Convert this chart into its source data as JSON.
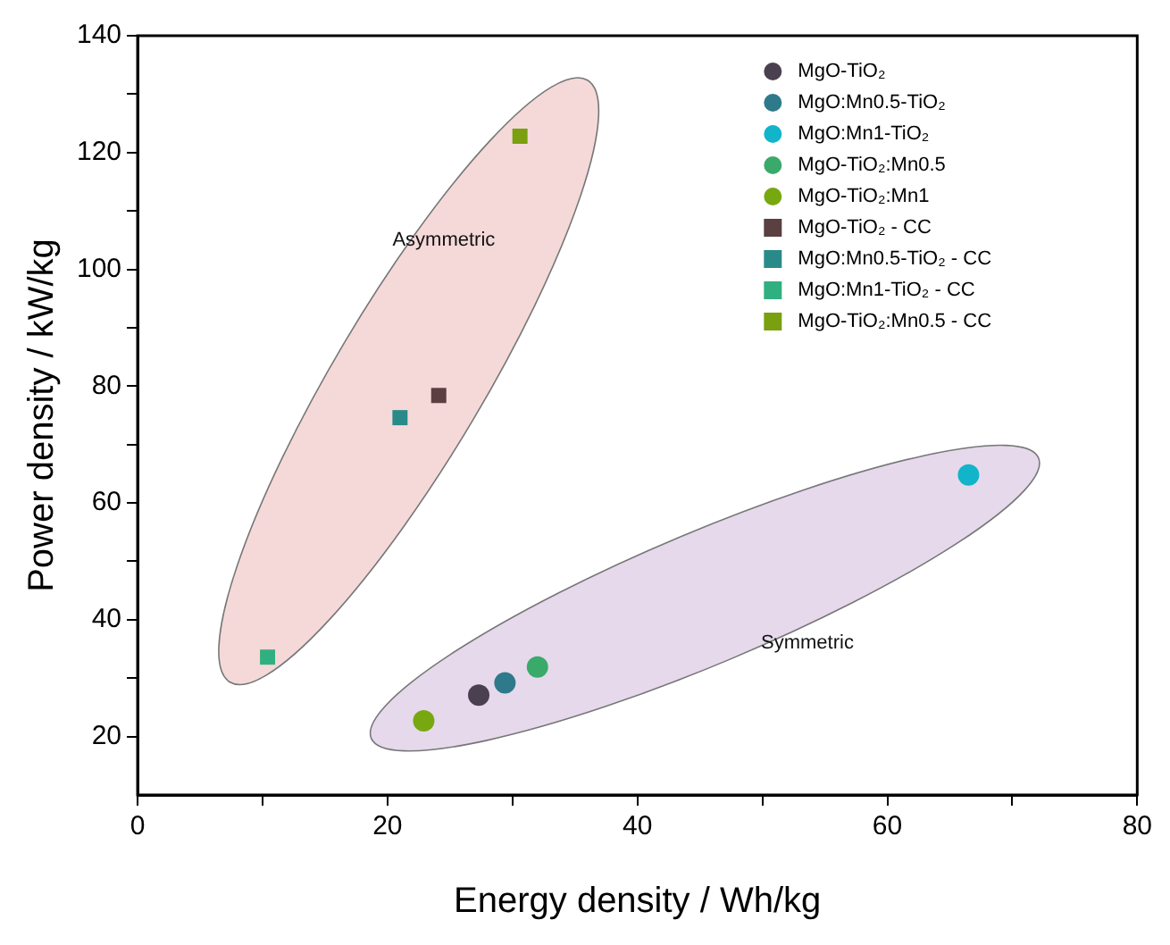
{
  "chart_data": {
    "type": "scatter",
    "xlabel": "Energy density / Wh/kg",
    "ylabel": "Power density / kW/kg",
    "xlim": [
      0,
      80
    ],
    "xticks": [
      0,
      {
        "value": 10,
        "label": null
      },
      20,
      {
        "value": 30,
        "label": null
      },
      40,
      {
        "value": 50,
        "label": null
      },
      60,
      {
        "value": 70,
        "label": null
      },
      80
    ],
    "ylim": [
      10,
      140
    ],
    "yticks": [
      20,
      {
        "value": 30,
        "label": null
      },
      40,
      {
        "value": 50,
        "label": null
      },
      60,
      {
        "value": 70,
        "label": null
      },
      80,
      {
        "value": 90,
        "label": null
      },
      100,
      {
        "value": 110,
        "label": null
      },
      120,
      {
        "value": 130,
        "label": null
      },
      140
    ],
    "legend": "top right",
    "grid": false,
    "annotations": [
      "Asymmetric",
      "Symmetric"
    ],
    "series": [
      {
        "name": "MgO-TiO₂",
        "color": "#4a4050",
        "marker": "circle",
        "x": [
          27.3
        ],
        "values": [
          27.1
        ]
      },
      {
        "name": "MgO:Mn0.5-TiO₂",
        "color": "#2e7a8a",
        "marker": "circle",
        "x": [
          29.4
        ],
        "values": [
          29.2
        ]
      },
      {
        "name": "MgO:Mn1-TiO₂",
        "color": "#11b4c8",
        "marker": "circle",
        "x": [
          66.5
        ],
        "values": [
          64.8
        ]
      },
      {
        "name": "MgO-TiO₂:Mn0.5",
        "color": "#3aaa6a",
        "marker": "circle",
        "x": [
          32.0
        ],
        "values": [
          31.9
        ]
      },
      {
        "name": "MgO-TiO₂:Mn1",
        "color": "#78a810",
        "marker": "circle",
        "x": [
          22.9
        ],
        "values": [
          22.7
        ]
      },
      {
        "name": "MgO-TiO₂ - CC",
        "color": "#5a4040",
        "marker": "square",
        "x": [
          24.1
        ],
        "values": [
          78.4
        ]
      },
      {
        "name": "MgO:Mn0.5-TiO₂ - CC",
        "color": "#2a8a8a",
        "marker": "square",
        "x": [
          21.0
        ],
        "values": [
          74.6
        ]
      },
      {
        "name": "MgO:Mn1-TiO₂ - CC",
        "color": "#30b080",
        "marker": "square",
        "x": [
          10.4
        ],
        "values": [
          33.6
        ]
      },
      {
        "name": "MgO-TiO₂:Mn0.5 - CC",
        "color": "#7aa010",
        "marker": "square",
        "x": [
          30.6
        ],
        "values": [
          122.8
        ]
      }
    ]
  }
}
